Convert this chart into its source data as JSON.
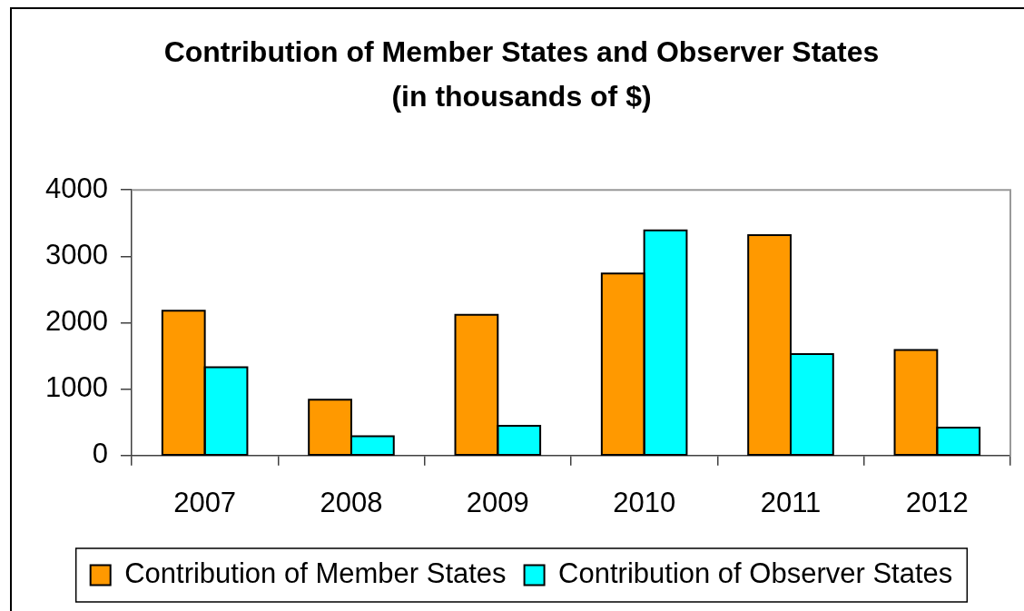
{
  "chart_data": {
    "type": "bar",
    "title": "Contribution of Member States and Observer States (in thousands of $)",
    "categories": [
      "2007",
      "2008",
      "2009",
      "2010",
      "2011",
      "2012"
    ],
    "series": [
      {
        "name": "Contribution of Member States",
        "color": "#ff9900",
        "values": [
          2180,
          840,
          2120,
          2740,
          3320,
          1590
        ]
      },
      {
        "name": "Contribution of Observer States",
        "color": "#00ffff",
        "values": [
          1330,
          290,
          450,
          3390,
          1530,
          420
        ]
      }
    ],
    "ylim": [
      0,
      4000
    ],
    "yticks": [
      0,
      1000,
      2000,
      3000,
      4000
    ],
    "legend": "bottom"
  }
}
